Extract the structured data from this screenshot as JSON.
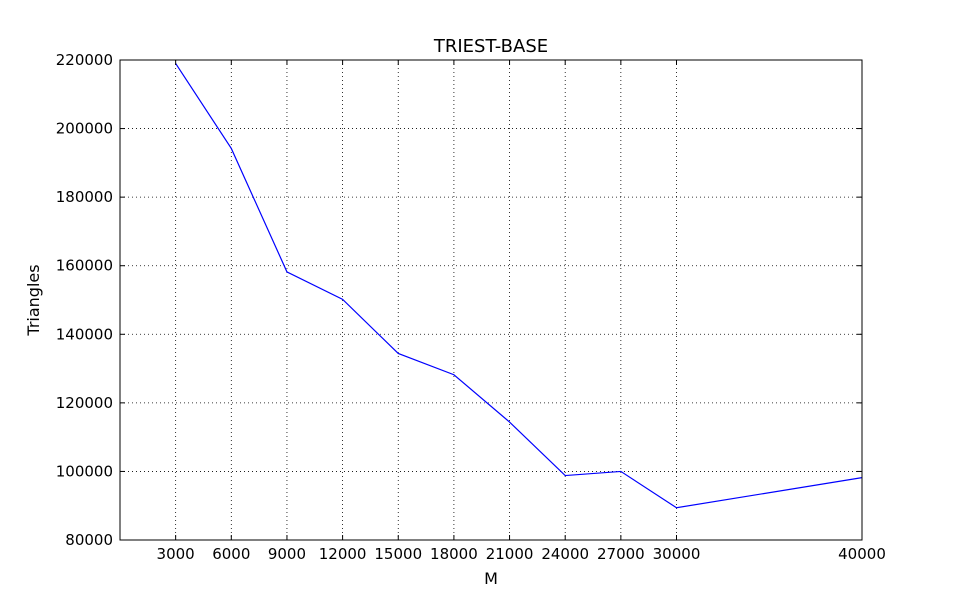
{
  "chart_data": {
    "type": "line",
    "title": "TRIEST-BASE",
    "xlabel": "M",
    "ylabel": "Triangles",
    "xlim": [
      0,
      40000
    ],
    "ylim": [
      80000,
      220000
    ],
    "x_ticks": [
      3000,
      6000,
      9000,
      12000,
      15000,
      18000,
      21000,
      24000,
      27000,
      30000,
      40000
    ],
    "x_tick_labels": [
      "3000",
      "6000",
      "9000",
      "12000",
      "15000",
      "18000",
      "21000",
      "24000",
      "27000",
      "30000",
      "40000"
    ],
    "y_ticks": [
      80000,
      100000,
      120000,
      140000,
      160000,
      180000,
      200000,
      220000
    ],
    "y_tick_labels": [
      "80000",
      "100000",
      "120000",
      "140000",
      "160000",
      "180000",
      "200000",
      "220000"
    ],
    "grid": true,
    "series": [
      {
        "color": "#0000ff",
        "x": [
          3000,
          6000,
          9000,
          12000,
          15000,
          18000,
          21000,
          24000,
          27000,
          30000,
          40000
        ],
        "y": [
          219000,
          194200,
          158200,
          150200,
          134400,
          128200,
          114400,
          98800,
          100000,
          89400,
          98200
        ]
      }
    ]
  }
}
